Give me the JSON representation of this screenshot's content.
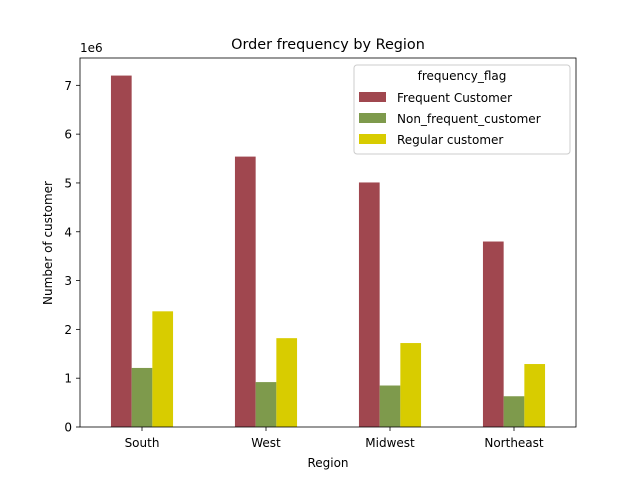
{
  "chart_data": {
    "type": "bar",
    "title": "Order frequency by Region",
    "xlabel": "Region",
    "ylabel": "Number of customer",
    "y_offset_label": "1e6",
    "y_scale": 1000000,
    "categories": [
      "South",
      "West",
      "Midwest",
      "Northeast"
    ],
    "ylim": [
      0,
      7.56
    ],
    "yticks": [
      0,
      1,
      2,
      3,
      4,
      5,
      6,
      7
    ],
    "grid": false,
    "legend": {
      "title": "frequency_flag",
      "placement": "top-right"
    },
    "series": [
      {
        "name": "Frequent Customer",
        "color": "#a0474f",
        "values": [
          7.2,
          5.54,
          5.01,
          3.8
        ]
      },
      {
        "name": "Non_frequent_customer",
        "color": "#7e9a4c",
        "values": [
          1.21,
          0.92,
          0.85,
          0.63
        ]
      },
      {
        "name": "Regular customer",
        "color": "#d8cc00",
        "values": [
          2.37,
          1.82,
          1.72,
          1.29
        ]
      }
    ]
  }
}
